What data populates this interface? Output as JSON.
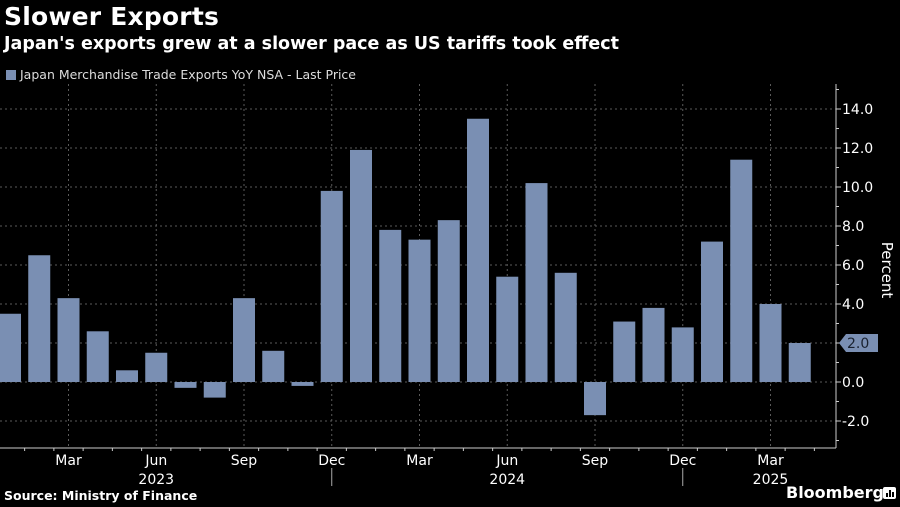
{
  "header": {
    "title": "Slower Exports",
    "subtitle": "Japan's exports grew at a slower pace as US tariffs took effect"
  },
  "footer": {
    "source": "Source: Ministry of Finance",
    "brand": "Bloomberg"
  },
  "colors": {
    "bar": "#7a8fb3",
    "background": "#000000",
    "grid": "#666666",
    "text": "#ffffff"
  },
  "chart_data": {
    "type": "bar",
    "title": "Slower Exports",
    "subtitle": "Japan's exports grew at a slower pace as US tariffs took effect",
    "legend": [
      "Japan Merchandise Trade Exports YoY NSA - Last Price"
    ],
    "legend_position": "top-left",
    "xlabel": "",
    "ylabel": "Percent",
    "y_axis_side": "right",
    "ylim": [
      -3.4,
      15.0
    ],
    "yticks": [
      -2.0,
      0.0,
      2.0,
      4.0,
      6.0,
      8.0,
      10.0,
      12.0,
      14.0
    ],
    "ytick_labels": [
      "-2.0",
      "0.0",
      "2.0",
      "4.0",
      "6.0",
      "8.0",
      "10.0",
      "12.0",
      "14.0"
    ],
    "grid": true,
    "last_value_label": "2.0",
    "categories": [
      "2023-01",
      "2023-02",
      "2023-03",
      "2023-04",
      "2023-05",
      "2023-06",
      "2023-07",
      "2023-08",
      "2023-09",
      "2023-10",
      "2023-11",
      "2023-12",
      "2024-01",
      "2024-02",
      "2024-03",
      "2024-04",
      "2024-05",
      "2024-06",
      "2024-07",
      "2024-08",
      "2024-09",
      "2024-10",
      "2024-11",
      "2024-12",
      "2025-01",
      "2025-02",
      "2025-03",
      "2025-04"
    ],
    "series": [
      {
        "name": "Japan Merchandise Trade Exports YoY NSA - Last Price",
        "values": [
          3.5,
          6.5,
          4.3,
          2.6,
          0.6,
          1.5,
          -0.3,
          -0.8,
          4.3,
          1.6,
          -0.2,
          9.8,
          11.9,
          7.8,
          7.3,
          8.3,
          13.5,
          5.4,
          10.2,
          5.6,
          -1.7,
          3.1,
          3.8,
          2.8,
          7.2,
          11.4,
          4.0,
          2.0
        ]
      }
    ],
    "x_month_labels": [
      {
        "index": 2,
        "label": "Mar"
      },
      {
        "index": 5,
        "label": "Jun"
      },
      {
        "index": 8,
        "label": "Sep"
      },
      {
        "index": 11,
        "label": "Dec"
      },
      {
        "index": 14,
        "label": "Mar"
      },
      {
        "index": 17,
        "label": "Jun"
      },
      {
        "index": 20,
        "label": "Sep"
      },
      {
        "index": 23,
        "label": "Dec"
      },
      {
        "index": 26,
        "label": "Mar"
      }
    ],
    "x_year_labels": [
      {
        "center_index": 5,
        "label": "2023"
      },
      {
        "center_index": 17,
        "label": "2024"
      },
      {
        "center_index": 26,
        "label": "2025"
      }
    ]
  }
}
